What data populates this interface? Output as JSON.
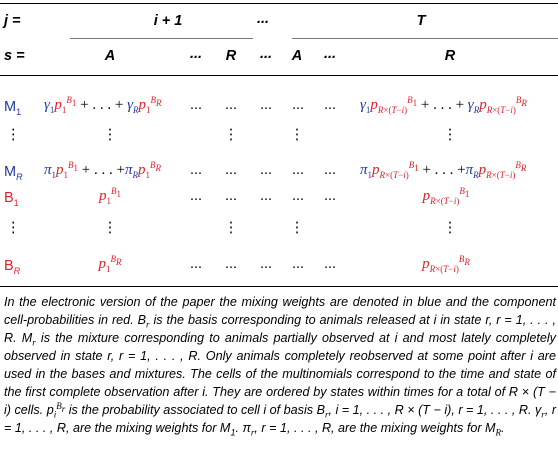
{
  "colors": {
    "mixing_weights": "#1f3aa8",
    "cell_probabilities": "#e0202a"
  },
  "header": {
    "row_j": {
      "label": "j =",
      "col_i1": "i + 1",
      "dots": "...",
      "col_T": "T"
    },
    "row_s": {
      "label": "s =",
      "A1": "A",
      "dots1": "...",
      "R1": "R",
      "dots2": "...",
      "A2": "A",
      "dots3": "...",
      "R2": "R"
    }
  },
  "rows": {
    "M1": "M1",
    "MR": "MR",
    "B1": "B1",
    "BR": "BR",
    "vdots": "⋮",
    "dots": "..."
  },
  "caption": {
    "p1": "In the electronic version of the paper the mixing weights are denoted in blue and the component cell-probabilities in red. B",
    "p2": " is the basis corresponding to animals released at i in state r, r = 1, . . . , R. M",
    "p3": " is the mixture corresponding to animals partially observed at i and most lately completely observed in state r, r = 1, . . . , R. Only animals completely reobserved at some point after i are used in the bases and mixtures. The cells of the multinomials correspond to the time and state of the first complete observation after i. They are ordered by states within times for a total of R × (T − i) cells. p",
    "p4": " is the probability associated to cell i of basis B",
    "p5": ", i = 1, . . . , R × (T − i), r = 1, . . . , R. γ",
    "p6": ", r = 1, . . . , R, are the mixing weights for M",
    "p7": ". π",
    "p8": ", r = 1, . . . , R, are the mixing weights for M",
    "p9": "."
  }
}
